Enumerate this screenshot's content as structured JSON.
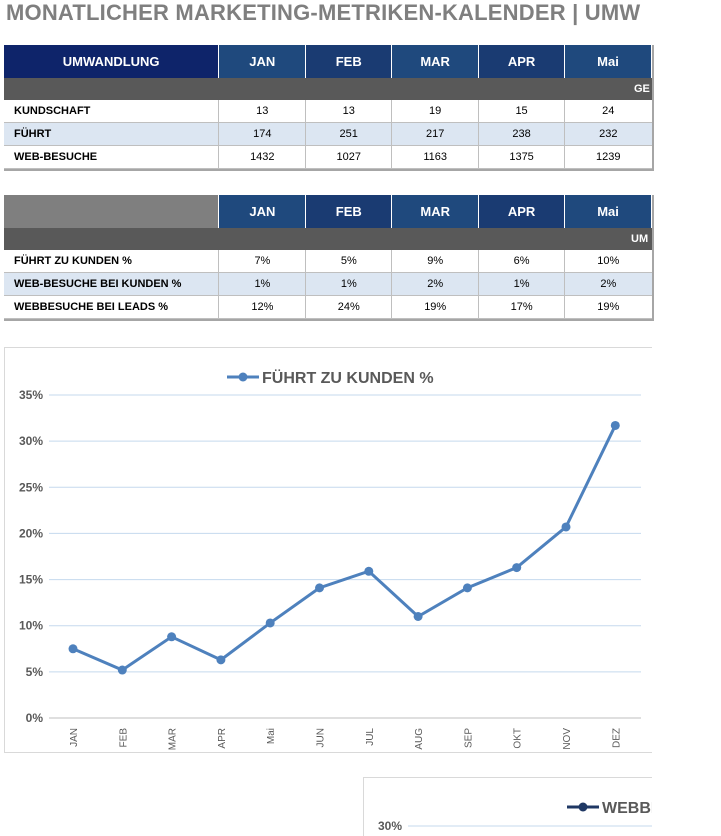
{
  "page": {
    "title": "MONATLICHER MARKETING-METRIKEN-KALENDER |   UMW"
  },
  "table1": {
    "header_label": "UMWANDLUNG",
    "months": [
      "JAN",
      "FEB",
      "MAR",
      "APR",
      "Mai"
    ],
    "band_label": "GE",
    "rows": [
      {
        "label": "KUNDSCHAFT",
        "values": [
          "13",
          "13",
          "19",
          "15",
          "24"
        ]
      },
      {
        "label": "FÜHRT",
        "values": [
          "174",
          "251",
          "217",
          "238",
          "232"
        ]
      },
      {
        "label": "WEB-BESUCHE",
        "values": [
          "1432",
          "1027",
          "1163",
          "1375",
          "1239"
        ]
      }
    ]
  },
  "table2": {
    "months": [
      "JAN",
      "FEB",
      "MAR",
      "APR",
      "Mai"
    ],
    "band_label": "UM",
    "rows": [
      {
        "label": "FÜHRT ZU KUNDEN %",
        "values": [
          "7%",
          "5%",
          "9%",
          "6%",
          "10%"
        ]
      },
      {
        "label": "WEB-BESUCHE BEI KUNDEN %",
        "values": [
          "1%",
          "1%",
          "2%",
          "1%",
          "2%"
        ]
      },
      {
        "label": "WEBBESUCHE BEI LEADS %",
        "values": [
          "12%",
          "24%",
          "19%",
          "17%",
          "19%"
        ]
      }
    ]
  },
  "chart_data": [
    {
      "type": "line",
      "title": "",
      "xlabel": "",
      "ylabel": "",
      "categories": [
        "JAN",
        "FEB",
        "MAR",
        "APR",
        "Mai",
        "JUN",
        "JUL",
        "AUG",
        "SEP",
        "OKT",
        "NOV",
        "DEZ"
      ],
      "series": [
        {
          "name": "FÜHRT ZU KUNDEN %",
          "values": [
            7.5,
            5.2,
            8.8,
            6.3,
            10.3,
            14.1,
            15.9,
            11.0,
            14.1,
            16.3,
            20.7,
            31.7
          ]
        }
      ],
      "ylim": [
        0,
        35
      ],
      "yticks": [
        "0%",
        "5%",
        "10%",
        "15%",
        "20%",
        "25%",
        "30%",
        "35%"
      ],
      "grid": true,
      "legend": "top",
      "color": "#4e81bd"
    },
    {
      "type": "line",
      "title": "",
      "legend_label": "WEBBE",
      "visible_ytick": "30%",
      "color": "#1f3864"
    }
  ]
}
